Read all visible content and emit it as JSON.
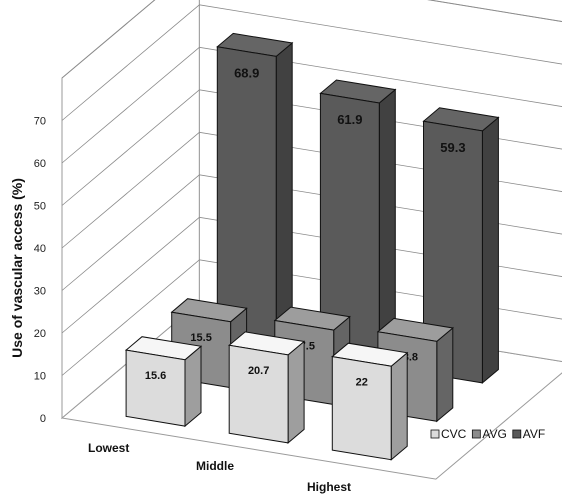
{
  "chart_data": {
    "type": "bar",
    "variant": "3d-grouped-depth",
    "categories": [
      "Lowest",
      "Middle",
      "Highest"
    ],
    "series": [
      {
        "name": "CVC",
        "values": [
          15.6,
          20.7,
          22
        ],
        "color": "#dcdcdc"
      },
      {
        "name": "AVG",
        "values": [
          15.5,
          17.5,
          18.8
        ],
        "color": "#8c8c8c"
      },
      {
        "name": "AVF",
        "values": [
          68.9,
          61.9,
          59.3
        ],
        "color": "#5a5a5a"
      }
    ],
    "ylabel": "Use of vascular access (%)",
    "yticks": [
      0,
      10,
      20,
      30,
      40,
      50,
      60,
      70
    ],
    "ylim": [
      0,
      80
    ],
    "grid": true,
    "legend_position": "bottom-right"
  }
}
